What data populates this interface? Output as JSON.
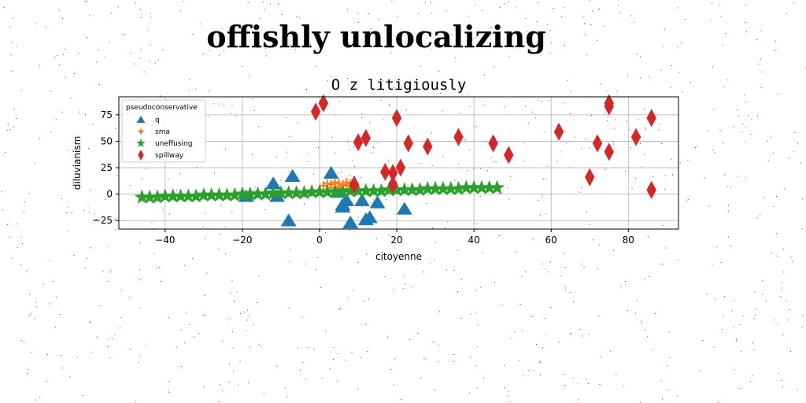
{
  "figure": {
    "title": "offishly unlocalizing"
  },
  "chart_data": {
    "type": "scatter",
    "title": "O z litigiously",
    "xlabel": "citoyenne",
    "ylabel": "diluvianism",
    "xlim": [
      -52,
      93
    ],
    "ylim": [
      -33,
      92
    ],
    "xticks": [
      -40,
      -20,
      0,
      20,
      40,
      60,
      80
    ],
    "yticks": [
      -25,
      0,
      25,
      50,
      75
    ],
    "grid": true,
    "legend": {
      "title": "pseudoconservative",
      "placement": "top-left"
    },
    "series": [
      {
        "name": "q",
        "marker": "triangle",
        "color": "#1f77b4",
        "points": [
          [
            -19,
            -2
          ],
          [
            -12,
            10
          ],
          [
            -11,
            -2
          ],
          [
            -8,
            -25
          ],
          [
            -7,
            17
          ],
          [
            3,
            20
          ],
          [
            5,
            2
          ],
          [
            6,
            -10
          ],
          [
            6,
            -12
          ],
          [
            7,
            -6
          ],
          [
            8,
            -27
          ],
          [
            11,
            -6
          ],
          [
            12,
            -24
          ],
          [
            13,
            -22
          ],
          [
            15,
            -8
          ],
          [
            22,
            -14
          ]
        ]
      },
      {
        "name": "sma",
        "marker": "plus",
        "color": "#ff7f0e",
        "points": [
          [
            1,
            8
          ],
          [
            2,
            10
          ],
          [
            3,
            9
          ],
          [
            3,
            6
          ],
          [
            4,
            11
          ],
          [
            5,
            10
          ],
          [
            5,
            7
          ],
          [
            6,
            9
          ],
          [
            7,
            11
          ],
          [
            7,
            8
          ],
          [
            8,
            10
          ],
          [
            9,
            8
          ]
        ]
      },
      {
        "name": "uneffusing",
        "marker": "star",
        "color": "#2ca02c",
        "points": [
          [
            -46,
            -3
          ],
          [
            -44,
            -3
          ],
          [
            -42,
            -3
          ],
          [
            -40,
            -2
          ],
          [
            -38,
            -2
          ],
          [
            -36,
            -2
          ],
          [
            -34,
            -2
          ],
          [
            -32,
            -2
          ],
          [
            -30,
            -1
          ],
          [
            -28,
            -1
          ],
          [
            -26,
            -1
          ],
          [
            -24,
            -1
          ],
          [
            -22,
            -1
          ],
          [
            -20,
            0
          ],
          [
            -18,
            0
          ],
          [
            -16,
            0
          ],
          [
            -14,
            0
          ],
          [
            -12,
            1
          ],
          [
            -10,
            1
          ],
          [
            -8,
            1
          ],
          [
            -6,
            1
          ],
          [
            -4,
            1
          ],
          [
            -2,
            2
          ],
          [
            0,
            2
          ],
          [
            2,
            2
          ],
          [
            4,
            2
          ],
          [
            6,
            2
          ],
          [
            8,
            3
          ],
          [
            10,
            3
          ],
          [
            12,
            3
          ],
          [
            14,
            3
          ],
          [
            16,
            3
          ],
          [
            18,
            4
          ],
          [
            20,
            4
          ],
          [
            22,
            4
          ],
          [
            24,
            4
          ],
          [
            26,
            4
          ],
          [
            28,
            5
          ],
          [
            30,
            5
          ],
          [
            32,
            5
          ],
          [
            34,
            5
          ],
          [
            36,
            5
          ],
          [
            38,
            6
          ],
          [
            40,
            6
          ],
          [
            42,
            6
          ],
          [
            44,
            6
          ],
          [
            46,
            6
          ]
        ]
      },
      {
        "name": "spillway",
        "marker": "thin_diamond",
        "color": "#d62728",
        "points": [
          [
            -1,
            78
          ],
          [
            1,
            86
          ],
          [
            9,
            9
          ],
          [
            10,
            49
          ],
          [
            12,
            53
          ],
          [
            17,
            21
          ],
          [
            19,
            20
          ],
          [
            19,
            9
          ],
          [
            20,
            72
          ],
          [
            21,
            25
          ],
          [
            23,
            48
          ],
          [
            28,
            45
          ],
          [
            36,
            54
          ],
          [
            45,
            48
          ],
          [
            49,
            37
          ],
          [
            62,
            59
          ],
          [
            70,
            16
          ],
          [
            72,
            48
          ],
          [
            75,
            40
          ],
          [
            75,
            83
          ],
          [
            75,
            86
          ],
          [
            82,
            54
          ],
          [
            86,
            72
          ],
          [
            86,
            4
          ]
        ]
      }
    ]
  }
}
